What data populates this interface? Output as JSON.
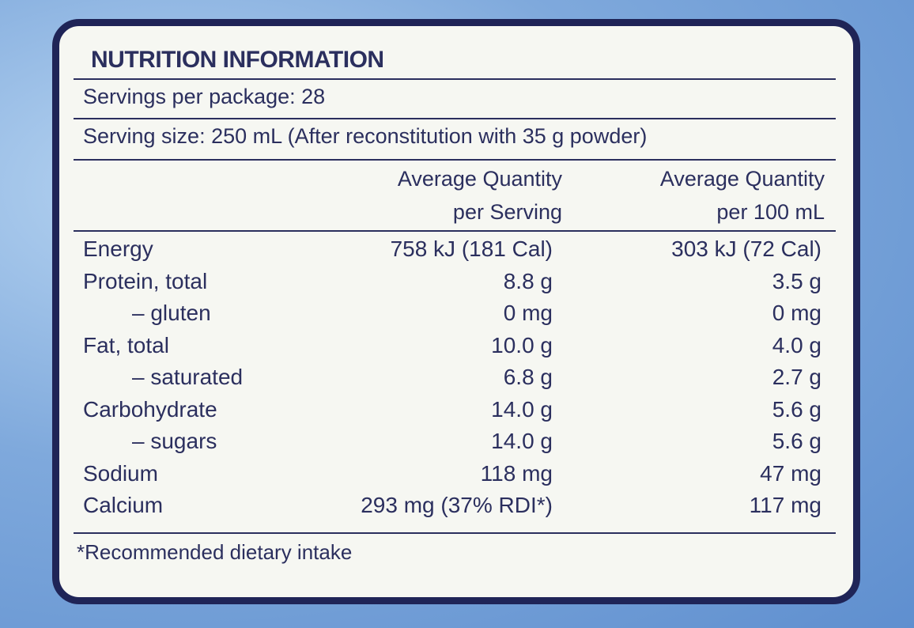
{
  "title": "NUTRITION INFORMATION",
  "servings": "Servings per package: 28",
  "serving_size": "Serving size: 250 mL (After reconstitution with 35 g powder)",
  "table": {
    "header": [
      [
        "Average Quantity",
        "per Serving"
      ],
      [
        "Average Quantity",
        "per 100 mL"
      ]
    ],
    "rows": [
      [
        "Energy",
        "758 kJ (181 Cal)",
        "303 kJ (72 Cal)"
      ],
      [
        "Protein, total",
        "8.8 g",
        "3.5 g"
      ],
      [
        "– gluten",
        "0 mg",
        "0 mg"
      ],
      [
        "Fat, total",
        "10.0 g",
        "4.0 g"
      ],
      [
        "– saturated",
        "6.8 g",
        "2.7 g"
      ],
      [
        "Carbohydrate",
        "14.0 g",
        "5.6 g"
      ],
      [
        "– sugars",
        "14.0 g",
        "5.6 g"
      ],
      [
        "Sodium",
        "118 mg",
        "47 mg"
      ],
      [
        "Calcium",
        "293 mg (37% RDI*)",
        "117 mg"
      ]
    ]
  },
  "footnote": "*Recommended dietary intake"
}
